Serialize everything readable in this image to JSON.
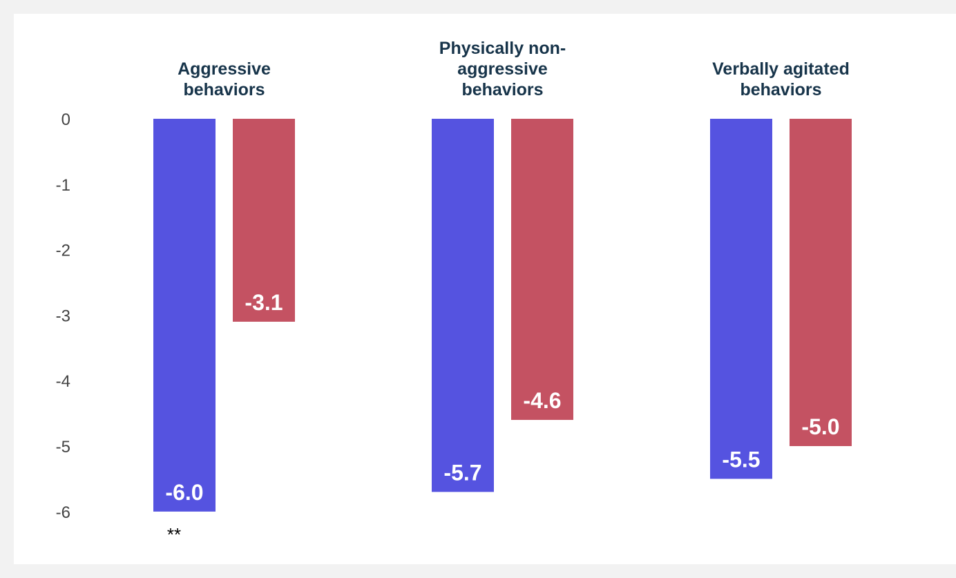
{
  "chart_data": {
    "type": "bar",
    "categories": [
      [
        "Aggressive",
        "behaviors"
      ],
      [
        "Physically non-",
        "aggressive",
        "behaviors"
      ],
      [
        "Verbally agitated",
        "behaviors"
      ]
    ],
    "series": [
      {
        "values": [
          -6.0,
          -5.7,
          -5.5
        ],
        "labels": [
          "-6.0",
          "-5.7",
          "-5.5"
        ],
        "color": "#5553e0"
      },
      {
        "values": [
          -3.1,
          -4.6,
          -5.0
        ],
        "labels": [
          "-3.1",
          "-4.6",
          "-5.0"
        ],
        "color": "#c45262"
      }
    ],
    "yticks": [
      0,
      -1,
      -2,
      -3,
      -4,
      -5,
      -6
    ],
    "ylim": [
      -6,
      0
    ],
    "annotations": [
      {
        "text": "**",
        "category_index": 0,
        "series_index": 0
      }
    ],
    "grid": false,
    "legend": "none",
    "title": "",
    "xlabel": "",
    "ylabel": ""
  }
}
